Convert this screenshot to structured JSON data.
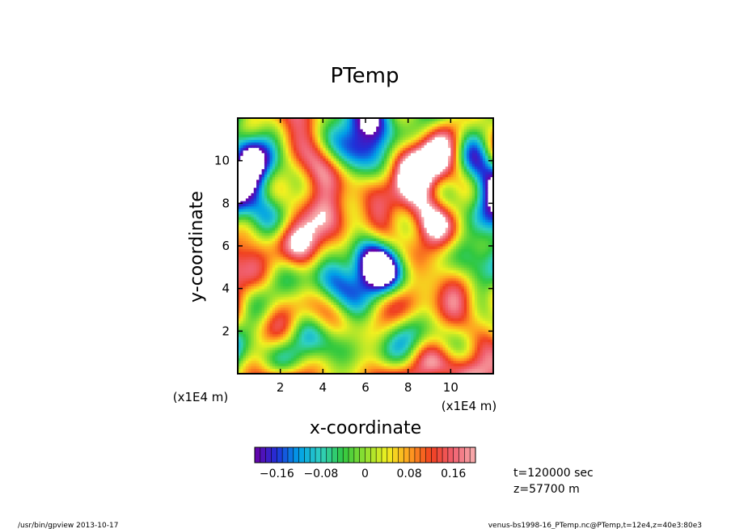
{
  "chart_data": {
    "type": "heatmap",
    "title": "PTemp",
    "xlabel": "x-coordinate",
    "ylabel": "y-coordinate",
    "x_unit": "(x1E4 m)",
    "y_unit": "(x1E4 m)",
    "xlim": [
      0,
      12
    ],
    "ylim": [
      0,
      12
    ],
    "x_ticks": [
      2,
      4,
      6,
      8,
      10
    ],
    "y_ticks": [
      2,
      4,
      6,
      8,
      10
    ],
    "x_tick_labels": [
      "2",
      "4",
      "6",
      "8",
      "10"
    ],
    "y_tick_labels": [
      "2",
      "4",
      "6",
      "8",
      "10"
    ],
    "value_range": [
      -0.2,
      0.2
    ],
    "colorbar": {
      "ticks": [
        -0.16,
        -0.08,
        0,
        0.08,
        0.16
      ],
      "labels": [
        "−0.16",
        "−0.08",
        "0",
        "0.08",
        "0.16"
      ],
      "n_levels": 40,
      "colors": [
        "#6a00a8",
        "#2030d8",
        "#00a0e8",
        "#30d0c0",
        "#30c840",
        "#90e030",
        "#f0f020",
        "#ffa020",
        "#f04020",
        "#f06070",
        "#f8b0b0"
      ]
    },
    "over_range_color": "#ffffff",
    "annotations": [
      "t=120000 sec",
      "z=57700 m"
    ]
  },
  "footer": {
    "left": "/usr/bin/gpview   2013-10-17",
    "right": "venus-bs1998-16_PTemp.nc@PTemp,t=12e4,z=40e3:80e3"
  }
}
